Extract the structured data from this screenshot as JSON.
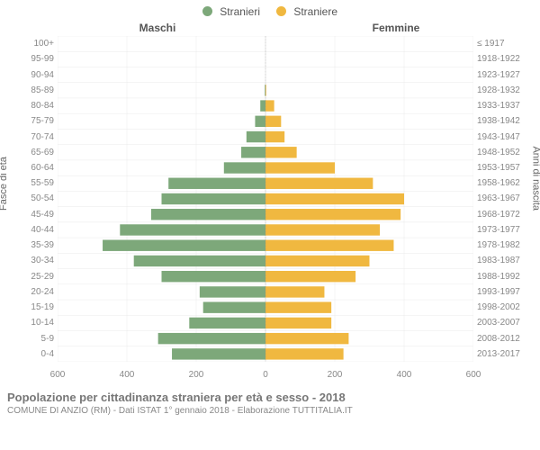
{
  "legend": {
    "male": {
      "label": "Stranieri",
      "color": "#7da87a"
    },
    "female": {
      "label": "Straniere",
      "color": "#f0b840"
    }
  },
  "column_headers": {
    "left": "Maschi",
    "right": "Femmine"
  },
  "axis_titles": {
    "left": "Fasce di età",
    "right": "Anni di nascita"
  },
  "x_axis": {
    "min": -600,
    "max": 600,
    "ticks": [
      -600,
      -400,
      -200,
      0,
      200,
      400,
      600
    ],
    "tick_labels": [
      "600",
      "400",
      "200",
      "0",
      "200",
      "400",
      "600"
    ]
  },
  "styling": {
    "grid_color": "#e5e5e5",
    "zero_line_color": "#888888",
    "background_color": "#ffffff",
    "tick_font_size": 10,
    "bar_height_ratio": 0.72
  },
  "rows": [
    {
      "age": "100+",
      "years": "≤ 1917",
      "m": 0,
      "f": 0
    },
    {
      "age": "95-99",
      "years": "1918-1922",
      "m": 0,
      "f": 0
    },
    {
      "age": "90-94",
      "years": "1923-1927",
      "m": 0,
      "f": 0
    },
    {
      "age": "85-89",
      "years": "1928-1932",
      "m": 2,
      "f": 2
    },
    {
      "age": "80-84",
      "years": "1933-1937",
      "m": 15,
      "f": 25
    },
    {
      "age": "75-79",
      "years": "1938-1942",
      "m": 30,
      "f": 45
    },
    {
      "age": "70-74",
      "years": "1943-1947",
      "m": 55,
      "f": 55
    },
    {
      "age": "65-69",
      "years": "1948-1952",
      "m": 70,
      "f": 90
    },
    {
      "age": "60-64",
      "years": "1953-1957",
      "m": 120,
      "f": 200
    },
    {
      "age": "55-59",
      "years": "1958-1962",
      "m": 280,
      "f": 310
    },
    {
      "age": "50-54",
      "years": "1963-1967",
      "m": 300,
      "f": 400
    },
    {
      "age": "45-49",
      "years": "1968-1972",
      "m": 330,
      "f": 390
    },
    {
      "age": "40-44",
      "years": "1973-1977",
      "m": 420,
      "f": 330
    },
    {
      "age": "35-39",
      "years": "1978-1982",
      "m": 470,
      "f": 370
    },
    {
      "age": "30-34",
      "years": "1983-1987",
      "m": 380,
      "f": 300
    },
    {
      "age": "25-29",
      "years": "1988-1992",
      "m": 300,
      "f": 260
    },
    {
      "age": "20-24",
      "years": "1993-1997",
      "m": 190,
      "f": 170
    },
    {
      "age": "15-19",
      "years": "1998-2002",
      "m": 180,
      "f": 190
    },
    {
      "age": "10-14",
      "years": "2003-2007",
      "m": 220,
      "f": 190
    },
    {
      "age": "5-9",
      "years": "2008-2012",
      "m": 310,
      "f": 240
    },
    {
      "age": "0-4",
      "years": "2013-2017",
      "m": 270,
      "f": 225
    }
  ],
  "footer": {
    "title": "Popolazione per cittadinanza straniera per età e sesso - 2018",
    "subtitle": "COMUNE DI ANZIO (RM) - Dati ISTAT 1° gennaio 2018 - Elaborazione TUTTITALIA.IT"
  }
}
